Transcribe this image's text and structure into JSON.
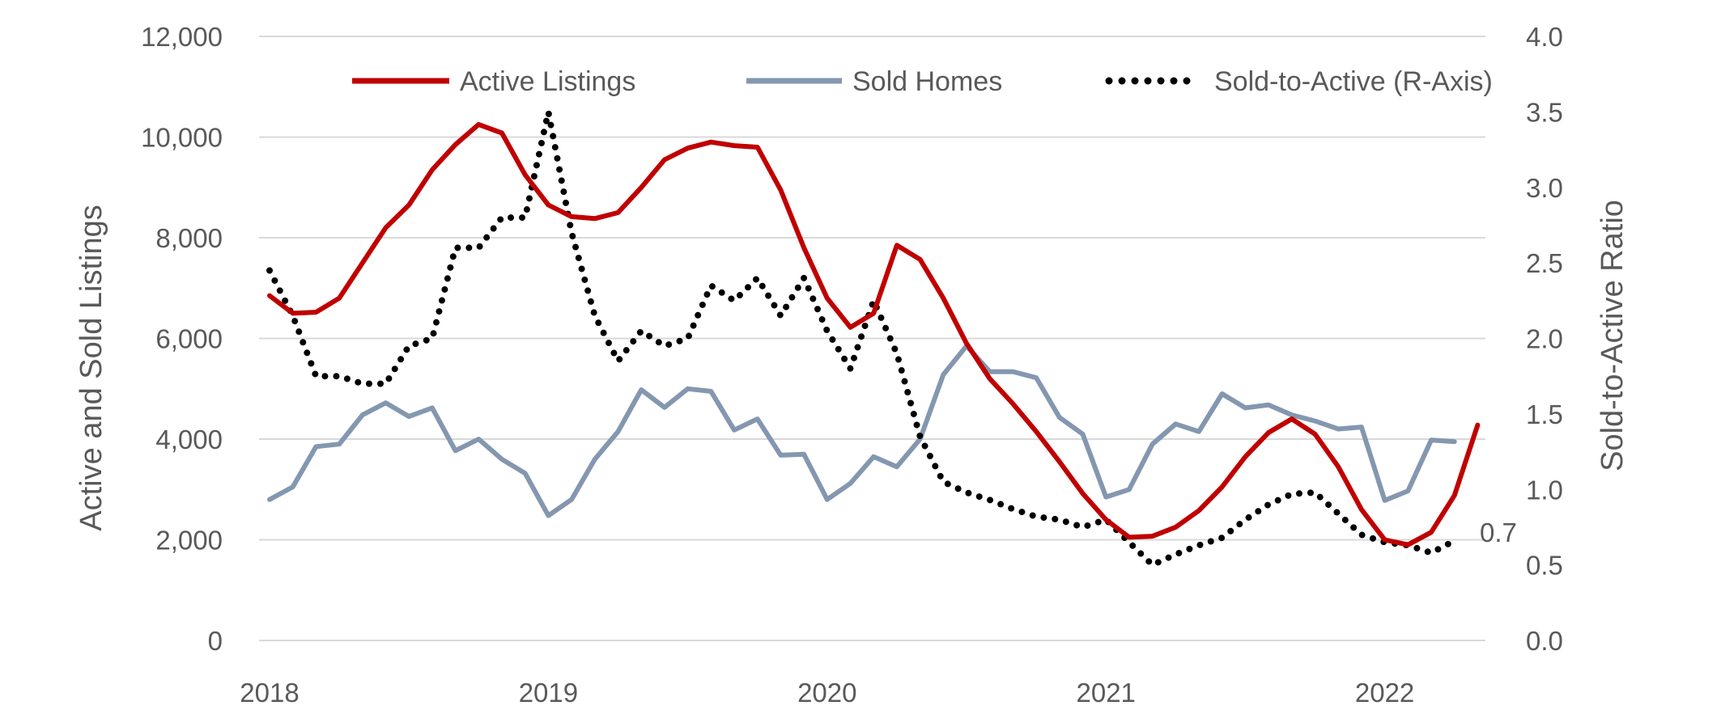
{
  "chart_data": {
    "type": "line",
    "title": "",
    "xlabel": "",
    "ylabel": "Active and Sold Listings",
    "y2label": "Sold-to-Active Ratio",
    "ylim": [
      0,
      12000
    ],
    "y2lim": [
      0,
      4
    ],
    "yticks": [
      "0",
      "2,000",
      "4,000",
      "6,000",
      "8,000",
      "10,000",
      "12,000"
    ],
    "y2ticks": [
      "0.0",
      "0.5",
      "1.0",
      "1.5",
      "2.0",
      "2.5",
      "3.0",
      "3.5",
      "4.0"
    ],
    "xticks": [
      "2018",
      "2019",
      "2020",
      "2021",
      "2022"
    ],
    "x_start": "2018-01",
    "grid": true,
    "legend": "top",
    "annotation": "0.7",
    "colors": {
      "active": "#c00000",
      "sold": "#8497b0",
      "ratio": "#000000"
    },
    "series": [
      {
        "name": "Active Listings",
        "axis": "left",
        "style": "solid",
        "values": [
          6850,
          6500,
          6520,
          6800,
          7500,
          8200,
          8650,
          9350,
          9850,
          10250,
          10080,
          9250,
          8650,
          8420,
          8380,
          8500,
          9000,
          9550,
          9780,
          9900,
          9830,
          9800,
          8950,
          7800,
          6800,
          6220,
          6500,
          7850,
          7570,
          6800,
          5900,
          5200,
          4700,
          4150,
          3550,
          2920,
          2400,
          2050,
          2070,
          2250,
          2580,
          3050,
          3650,
          4130,
          4400,
          4100,
          3450,
          2600,
          2000,
          1900,
          2150,
          2880,
          4280
        ]
      },
      {
        "name": "Sold Homes",
        "axis": "left",
        "style": "solid",
        "values": [
          2800,
          3050,
          3850,
          3900,
          4480,
          4720,
          4450,
          4620,
          3770,
          4000,
          3600,
          3320,
          2480,
          2800,
          3600,
          4150,
          4980,
          4630,
          5000,
          4950,
          4180,
          4400,
          3680,
          3700,
          2800,
          3120,
          3650,
          3450,
          4000,
          5280,
          5850,
          5340,
          5340,
          5220,
          4430,
          4100,
          2850,
          3000,
          3900,
          4300,
          4150,
          4900,
          4620,
          4680,
          4480,
          4360,
          4200,
          4240,
          2780,
          2970,
          3980,
          3950
        ]
      },
      {
        "name": "Sold-to-Active (R-Axis)",
        "axis": "right",
        "style": "dotted",
        "values": [
          2.45,
          2.15,
          1.75,
          1.75,
          1.7,
          1.7,
          1.95,
          2.0,
          2.6,
          2.6,
          2.8,
          2.8,
          3.5,
          2.7,
          2.15,
          1.85,
          2.05,
          1.95,
          2.0,
          2.35,
          2.25,
          2.4,
          2.15,
          2.4,
          2.05,
          1.8,
          2.25,
          1.9,
          1.35,
          1.05,
          0.98,
          0.93,
          0.87,
          0.82,
          0.8,
          0.75,
          0.8,
          0.65,
          0.5,
          0.57,
          0.63,
          0.68,
          0.8,
          0.9,
          0.97,
          0.98,
          0.84,
          0.7,
          0.65,
          0.63,
          0.58,
          0.66
        ]
      }
    ]
  }
}
